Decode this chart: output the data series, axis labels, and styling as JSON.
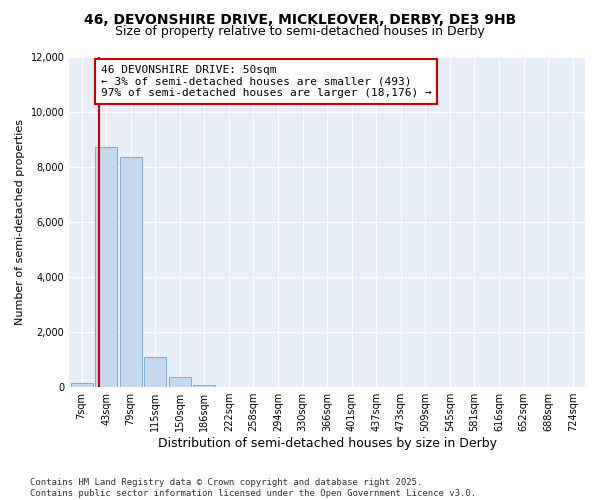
{
  "title_line1": "46, DEVONSHIRE DRIVE, MICKLEOVER, DERBY, DE3 9HB",
  "title_line2": "Size of property relative to semi-detached houses in Derby",
  "xlabel": "Distribution of semi-detached houses by size in Derby",
  "ylabel": "Number of semi-detached properties",
  "categories": [
    "7sqm",
    "43sqm",
    "79sqm",
    "115sqm",
    "150sqm",
    "186sqm",
    "222sqm",
    "258sqm",
    "294sqm",
    "330sqm",
    "366sqm",
    "401sqm",
    "437sqm",
    "473sqm",
    "509sqm",
    "545sqm",
    "581sqm",
    "616sqm",
    "652sqm",
    "688sqm",
    "724sqm"
  ],
  "values": [
    150,
    8700,
    8350,
    1100,
    350,
    80,
    10,
    0,
    0,
    0,
    0,
    0,
    0,
    0,
    0,
    0,
    0,
    0,
    0,
    0,
    0
  ],
  "bar_color": "#c5d8f0",
  "bar_edge_color": "#7aadd4",
  "vline_x": 0.72,
  "vline_color": "#cc0000",
  "annotation_line1": "46 DEVONSHIRE DRIVE: 50sqm",
  "annotation_line2": "← 3% of semi-detached houses are smaller (493)",
  "annotation_line3": "97% of semi-detached houses are larger (18,176) →",
  "annot_box_facecolor": "#ffffff",
  "annot_box_edgecolor": "#cc0000",
  "ylim": [
    0,
    12000
  ],
  "yticks": [
    0,
    2000,
    4000,
    6000,
    8000,
    10000,
    12000
  ],
  "background_color": "#ffffff",
  "plot_bg_color": "#e8eef8",
  "grid_color": "#ffffff",
  "footer_line1": "Contains HM Land Registry data © Crown copyright and database right 2025.",
  "footer_line2": "Contains public sector information licensed under the Open Government Licence v3.0.",
  "title_fontsize": 10,
  "subtitle_fontsize": 9,
  "tick_fontsize": 7,
  "ylabel_fontsize": 8,
  "xlabel_fontsize": 9,
  "annot_fontsize": 8,
  "footer_fontsize": 6.5
}
